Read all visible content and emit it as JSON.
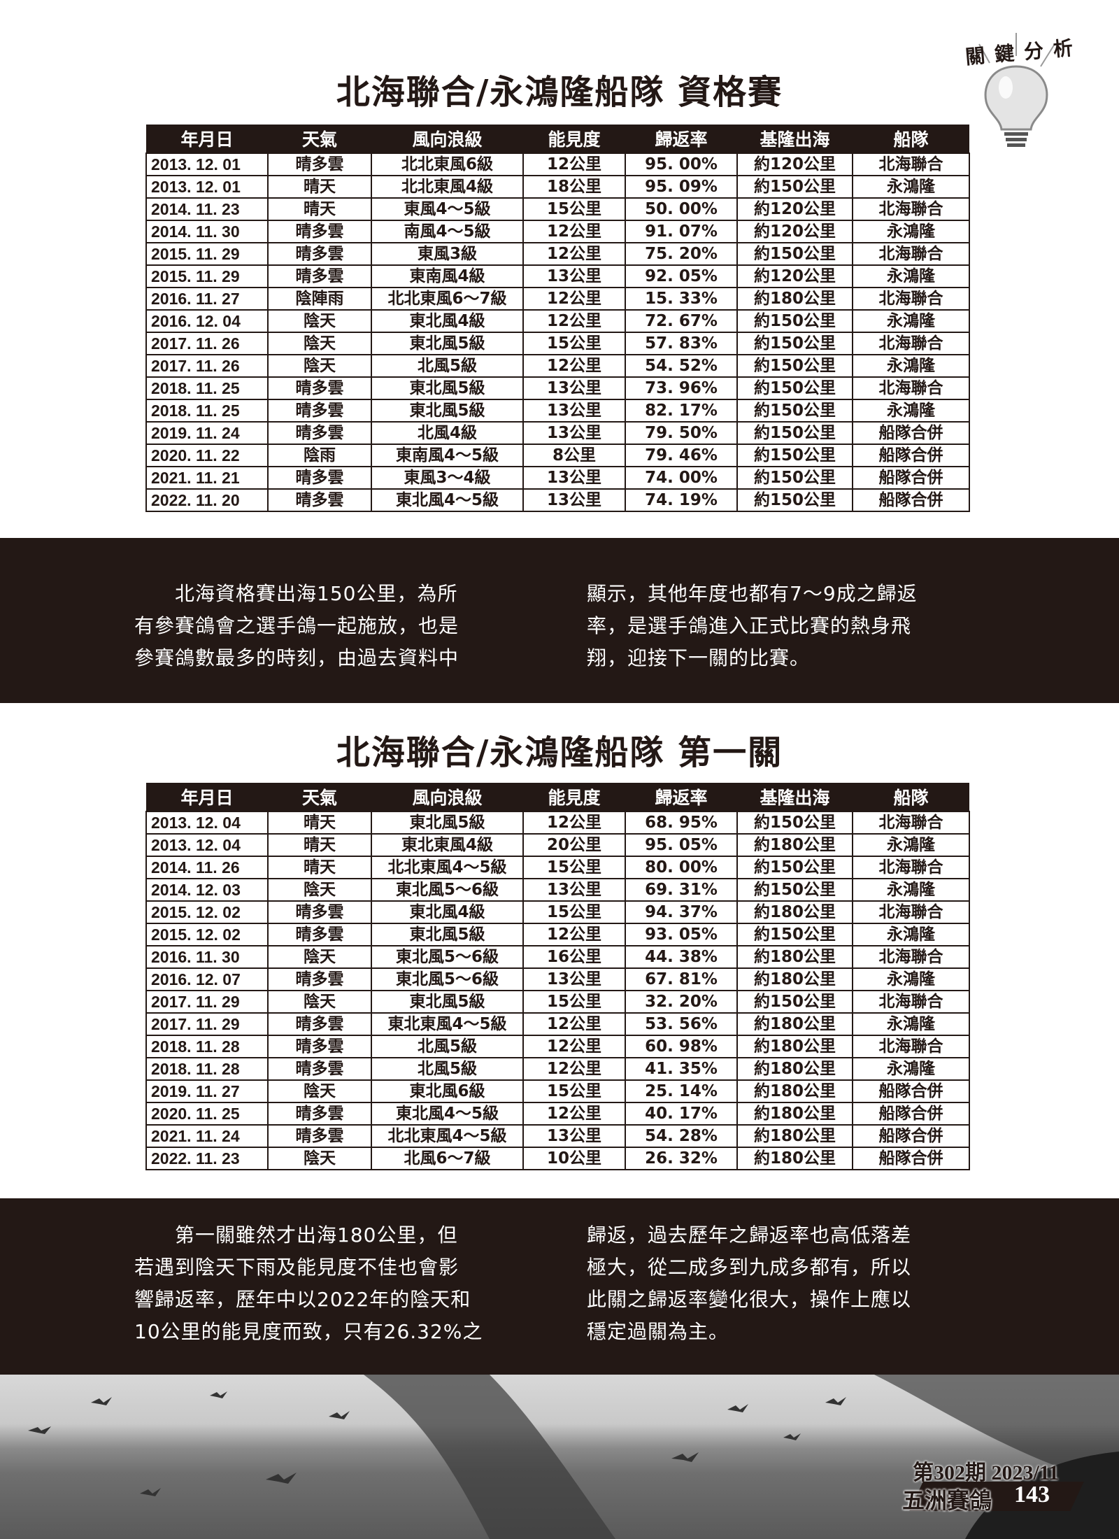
{
  "badge": {
    "label": "關鍵分析",
    "icon": "lightbulb-icon"
  },
  "columns": [
    "年月日",
    "天氣",
    "風向浪級",
    "能見度",
    "歸返率",
    "基隆出海",
    "船隊"
  ],
  "section1": {
    "title": "北海聯合/永鴻隆船隊 資格賽",
    "rows": [
      [
        "2013. 12. 01",
        "晴多雲",
        "北北東風6級",
        "12公里",
        "95. 00%",
        "約120公里",
        "北海聯合"
      ],
      [
        "2013. 12. 01",
        "晴天",
        "北北東風4級",
        "18公里",
        "95. 09%",
        "約150公里",
        "永鴻隆"
      ],
      [
        "2014. 11. 23",
        "晴天",
        "東風4～5級",
        "15公里",
        "50. 00%",
        "約120公里",
        "北海聯合"
      ],
      [
        "2014. 11. 30",
        "晴多雲",
        "南風4～5級",
        "12公里",
        "91. 07%",
        "約120公里",
        "永鴻隆"
      ],
      [
        "2015. 11. 29",
        "晴多雲",
        "東風3級",
        "12公里",
        "75. 20%",
        "約150公里",
        "北海聯合"
      ],
      [
        "2015. 11. 29",
        "晴多雲",
        "東南風4級",
        "13公里",
        "92. 05%",
        "約120公里",
        "永鴻隆"
      ],
      [
        "2016. 11. 27",
        "陰陣雨",
        "北北東風6～7級",
        "12公里",
        "15. 33%",
        "約180公里",
        "北海聯合"
      ],
      [
        "2016. 12. 04",
        "陰天",
        "東北風4級",
        "12公里",
        "72. 67%",
        "約150公里",
        "永鴻隆"
      ],
      [
        "2017. 11. 26",
        "陰天",
        "東北風5級",
        "15公里",
        "57. 83%",
        "約150公里",
        "北海聯合"
      ],
      [
        "2017. 11. 26",
        "陰天",
        "北風5級",
        "12公里",
        "54. 52%",
        "約150公里",
        "永鴻隆"
      ],
      [
        "2018. 11. 25",
        "晴多雲",
        "東北風5級",
        "13公里",
        "73. 96%",
        "約150公里",
        "北海聯合"
      ],
      [
        "2018. 11. 25",
        "晴多雲",
        "東北風5級",
        "13公里",
        "82. 17%",
        "約150公里",
        "永鴻隆"
      ],
      [
        "2019. 11. 24",
        "晴多雲",
        "北風4級",
        "13公里",
        "79. 50%",
        "約150公里",
        "船隊合併"
      ],
      [
        "2020. 11. 22",
        "陰雨",
        "東南風4～5級",
        "8公里",
        "79. 46%",
        "約150公里",
        "船隊合併"
      ],
      [
        "2021. 11. 21",
        "晴多雲",
        "東風3～4級",
        "13公里",
        "74. 00%",
        "約150公里",
        "船隊合併"
      ],
      [
        "2022. 11. 20",
        "晴多雲",
        "東北風4～5級",
        "13公里",
        "74. 19%",
        "約150公里",
        "船隊合併"
      ]
    ],
    "text_left": [
      "　　北海資格賽出海150公里，為所",
      "有參賽鴿會之選手鴿一起施放，也是",
      "參賽鴿數最多的時刻，由過去資料中"
    ],
    "text_right": [
      "顯示，其他年度也都有7～9成之歸返",
      "率，是選手鴿進入正式比賽的熱身飛",
      "翔，迎接下一關的比賽。"
    ]
  },
  "section2": {
    "title": "北海聯合/永鴻隆船隊 第一關",
    "rows": [
      [
        "2013. 12. 04",
        "晴天",
        "東北風5級",
        "12公里",
        "68. 95%",
        "約150公里",
        "北海聯合"
      ],
      [
        "2013. 12. 04",
        "晴天",
        "東北東風4級",
        "20公里",
        "95. 05%",
        "約180公里",
        "永鴻隆"
      ],
      [
        "2014. 11. 26",
        "晴天",
        "北北東風4～5級",
        "15公里",
        "80. 00%",
        "約150公里",
        "北海聯合"
      ],
      [
        "2014. 12. 03",
        "陰天",
        "東北風5～6級",
        "13公里",
        "69. 31%",
        "約150公里",
        "永鴻隆"
      ],
      [
        "2015. 12. 02",
        "晴多雲",
        "東北風4級",
        "15公里",
        "94. 37%",
        "約180公里",
        "北海聯合"
      ],
      [
        "2015. 12. 02",
        "晴多雲",
        "東北風5級",
        "12公里",
        "93. 05%",
        "約150公里",
        "永鴻隆"
      ],
      [
        "2016. 11. 30",
        "陰天",
        "東北風5～6級",
        "16公里",
        "44. 38%",
        "約180公里",
        "北海聯合"
      ],
      [
        "2016. 12. 07",
        "晴多雲",
        "東北風5～6級",
        "13公里",
        "67. 81%",
        "約180公里",
        "永鴻隆"
      ],
      [
        "2017. 11. 29",
        "陰天",
        "東北風5級",
        "15公里",
        "32. 20%",
        "約150公里",
        "北海聯合"
      ],
      [
        "2017. 11. 29",
        "晴多雲",
        "東北東風4～5級",
        "12公里",
        "53. 56%",
        "約180公里",
        "永鴻隆"
      ],
      [
        "2018. 11. 28",
        "晴多雲",
        "北風5級",
        "12公里",
        "60. 98%",
        "約180公里",
        "北海聯合"
      ],
      [
        "2018. 11. 28",
        "晴多雲",
        "北風5級",
        "12公里",
        "41. 35%",
        "約180公里",
        "永鴻隆"
      ],
      [
        "2019. 11. 27",
        "陰天",
        "東北風6級",
        "15公里",
        "25. 14%",
        "約180公里",
        "船隊合併"
      ],
      [
        "2020. 11. 25",
        "晴多雲",
        "東北風4～5級",
        "12公里",
        "40. 17%",
        "約180公里",
        "船隊合併"
      ],
      [
        "2021. 11. 24",
        "晴多雲",
        "北北東風4～5級",
        "13公里",
        "54. 28%",
        "約180公里",
        "船隊合併"
      ],
      [
        "2022. 11. 23",
        "陰天",
        "北風6～7級",
        "10公里",
        "26. 32%",
        "約180公里",
        "船隊合併"
      ]
    ],
    "text_left": [
      "　　第一關雖然才出海180公里，但",
      "若遇到陰天下雨及能見度不佳也會影",
      "響歸返率，歷年中以2022年的陰天和",
      "10公里的能見度而致，只有26.32%之"
    ],
    "text_right": [
      "歸返，過去歷年之歸返率也高低落差",
      "極大，從二成多到九成多都有，所以",
      "此關之歸返率變化很大，操作上應以",
      "穩定過關為主。"
    ]
  },
  "footer": {
    "issue": "第302期 2023/11",
    "magazine": "五洲賽鴿",
    "page": "143"
  },
  "colors": {
    "dark": "#231815",
    "white": "#ffffff"
  }
}
